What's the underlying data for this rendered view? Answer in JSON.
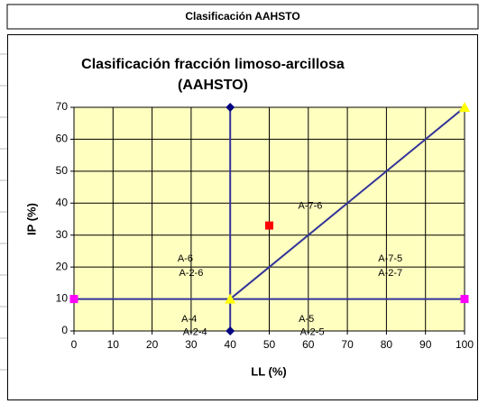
{
  "header": {
    "title": "Clasificación AAHSTO"
  },
  "chart_data": {
    "type": "scatter",
    "title_lines": [
      "Clasificación fracción limoso-arcillosa",
      "(AAHSTO)"
    ],
    "x_label": "LL (%)",
    "y_label": "IP (%)",
    "xlim": [
      0,
      100
    ],
    "ylim": [
      0,
      70
    ],
    "xticks": [
      0,
      10,
      20,
      30,
      40,
      50,
      60,
      70,
      80,
      90,
      100
    ],
    "yticks": [
      0,
      10,
      20,
      30,
      40,
      50,
      60,
      70
    ],
    "grid": true,
    "plot_background": "#ffffc0",
    "series": [
      {
        "x": [
          40,
          40
        ],
        "values": [
          0,
          70
        ],
        "color": "#33339a",
        "marker": "diamond",
        "marker_color": "#000080"
      },
      {
        "x": [
          0,
          100
        ],
        "values": [
          10,
          10
        ],
        "color": "#33339a",
        "marker": "square",
        "marker_color": "#ff00ff"
      },
      {
        "x": [
          40,
          100
        ],
        "values": [
          10,
          70
        ],
        "color": "#33339a",
        "marker": "triangle",
        "marker_color": "#ffff00"
      },
      {
        "x": [
          50
        ],
        "values": [
          33
        ],
        "marker": "square",
        "marker_color": "#ff0000"
      }
    ],
    "annotations": [
      {
        "text": "A-6",
        "x": 28.5,
        "y": 22.6
      },
      {
        "text": "A-2-6",
        "x": 30,
        "y": 18
      },
      {
        "text": "A-7-6",
        "x": 60.5,
        "y": 39
      },
      {
        "text": "A-7-5",
        "x": 81,
        "y": 22.6
      },
      {
        "text": "A-2-7",
        "x": 81,
        "y": 18
      },
      {
        "text": "A-4",
        "x": 29.5,
        "y": 3.7
      },
      {
        "text": "A-2-4",
        "x": 31,
        "y": -0.5
      },
      {
        "text": "A-5",
        "x": 59.5,
        "y": 3.7
      },
      {
        "text": "A-2-5",
        "x": 61,
        "y": -0.5
      }
    ]
  }
}
